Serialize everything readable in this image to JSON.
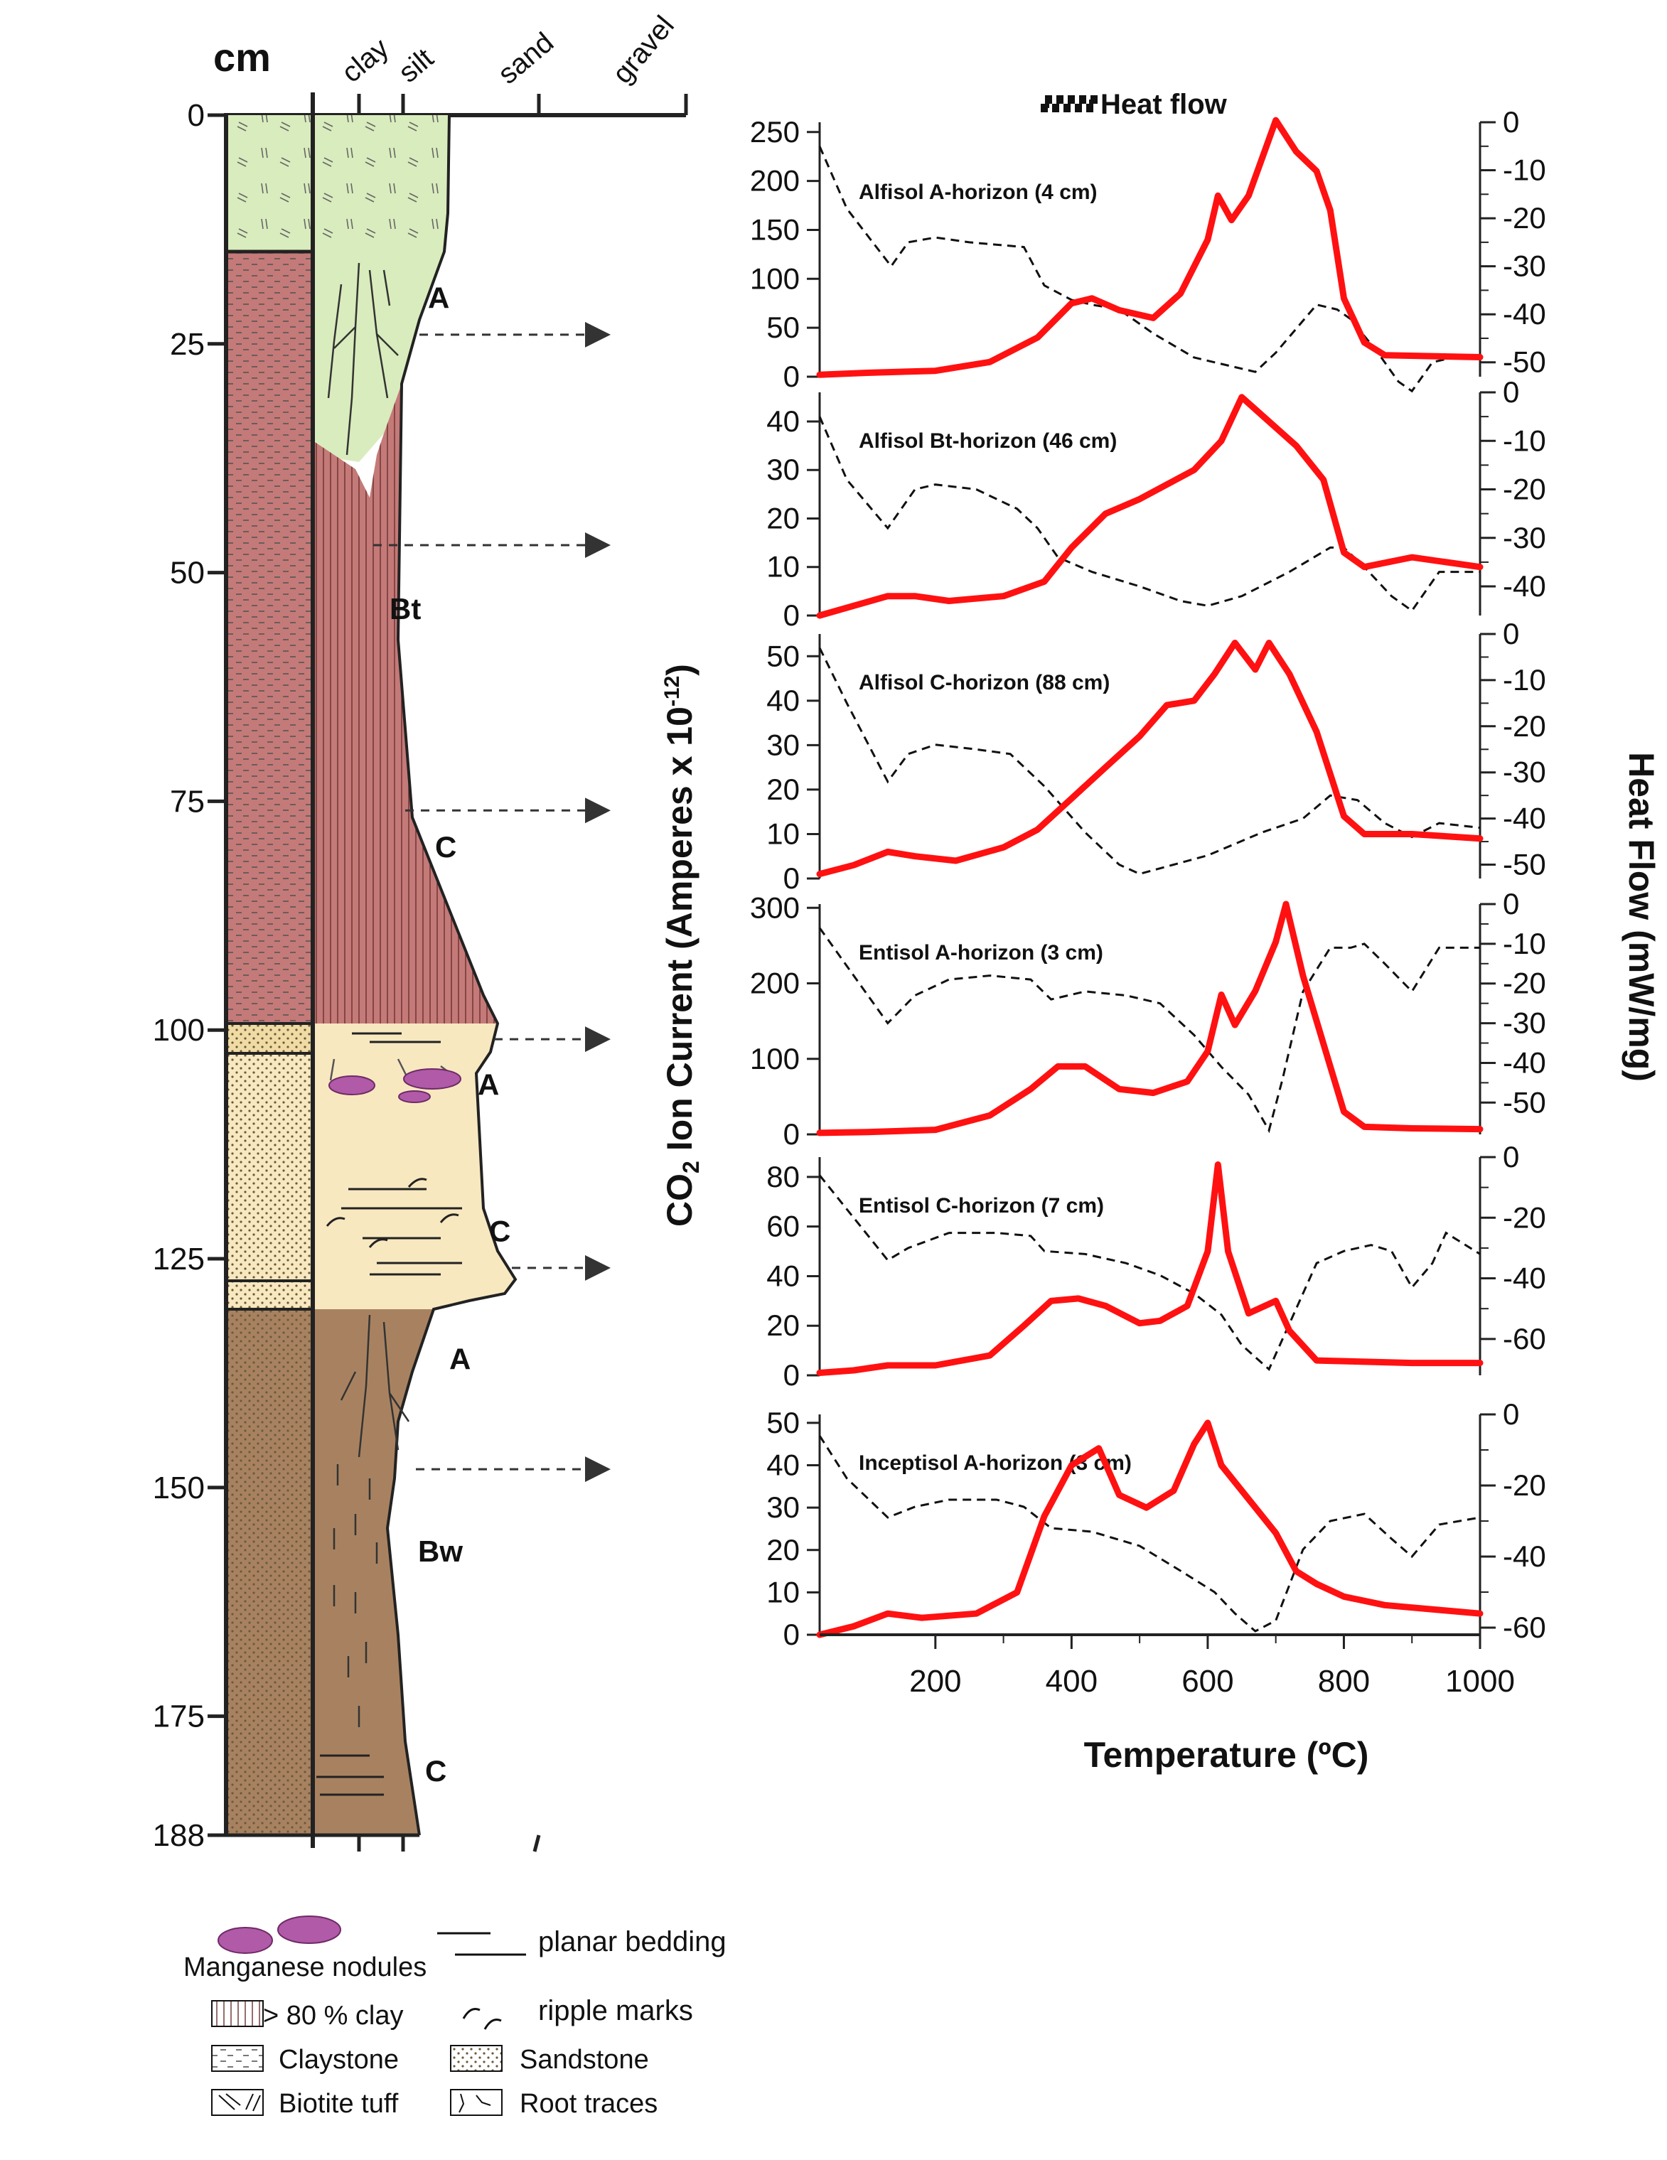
{
  "column": {
    "unit_label": "cm",
    "grain_labels": [
      "clay",
      "silt",
      "sand",
      "gravel"
    ],
    "depth_ticks": [
      0,
      25,
      50,
      75,
      100,
      125,
      150,
      175,
      188
    ],
    "horizons": [
      {
        "label": "A",
        "depth": 20
      },
      {
        "label": "Bt",
        "depth": 54
      },
      {
        "label": "C",
        "depth": 80
      },
      {
        "label": "A",
        "depth": 106
      },
      {
        "label": "C",
        "depth": 122
      },
      {
        "label": "A",
        "depth": 136
      },
      {
        "label": "Bw",
        "depth": 157
      },
      {
        "label": "C",
        "depth": 181
      }
    ],
    "arrow_depths": [
      24,
      47,
      76,
      101,
      126,
      148
    ]
  },
  "colors": {
    "tuff": "#d9ecbd",
    "clay_red": "#c47a78",
    "sand": "#f8e8c0",
    "brown": "#a88260",
    "nodule": "#b05aa8",
    "co2": "#ff1111",
    "heat": "#111111"
  },
  "legend": {
    "heat_flow": "Heat flow",
    "manganese": "Manganese nodules",
    "planar": "planar bedding",
    "ripple": "ripple marks",
    "clay80": "> 80 % clay",
    "claystone": "Claystone",
    "sandstone": "Sandstone",
    "tuff": "Biotite tuff",
    "roots": "Root traces"
  },
  "axes": {
    "left_title_pre": "CO",
    "left_title_sub": "2",
    "left_title_mid": " Ion Current (Amperes x 10",
    "left_title_sup": "-12",
    "left_title_post": ")",
    "right_title": "Heat Flow (mW/mg)",
    "x_title": "Temperature (ºC)",
    "x_ticks": [
      "200",
      "400",
      "600",
      "800",
      "1000"
    ]
  },
  "chart_data": [
    {
      "type": "line",
      "title": "Alfisol A-horizon (4 cm)",
      "x_range": [
        30,
        1000
      ],
      "left_ticks": [
        0,
        50,
        100,
        150,
        200,
        250
      ],
      "left_lim": [
        0,
        260
      ],
      "right_ticks": [
        0,
        -10,
        -20,
        -30,
        -40,
        -50
      ],
      "right_lim": [
        -53,
        0
      ],
      "co2": [
        [
          30,
          2
        ],
        [
          100,
          4
        ],
        [
          200,
          6
        ],
        [
          280,
          15
        ],
        [
          350,
          40
        ],
        [
          400,
          75
        ],
        [
          430,
          80
        ],
        [
          470,
          68
        ],
        [
          520,
          60
        ],
        [
          560,
          85
        ],
        [
          600,
          140
        ],
        [
          615,
          185
        ],
        [
          635,
          160
        ],
        [
          660,
          185
        ],
        [
          700,
          262
        ],
        [
          730,
          230
        ],
        [
          760,
          210
        ],
        [
          780,
          170
        ],
        [
          800,
          80
        ],
        [
          830,
          35
        ],
        [
          860,
          22
        ],
        [
          1000,
          20
        ]
      ],
      "heat": [
        [
          30,
          -5
        ],
        [
          70,
          -18
        ],
        [
          135,
          -30
        ],
        [
          160,
          -25
        ],
        [
          200,
          -24
        ],
        [
          250,
          -25
        ],
        [
          330,
          -26
        ],
        [
          360,
          -34
        ],
        [
          400,
          -37
        ],
        [
          430,
          -38
        ],
        [
          470,
          -39
        ],
        [
          520,
          -44
        ],
        [
          580,
          -49
        ],
        [
          640,
          -51
        ],
        [
          670,
          -52
        ],
        [
          700,
          -48
        ],
        [
          730,
          -43
        ],
        [
          760,
          -38
        ],
        [
          790,
          -39
        ],
        [
          810,
          -41
        ],
        [
          850,
          -48
        ],
        [
          880,
          -54
        ],
        [
          900,
          -56
        ],
        [
          930,
          -50
        ],
        [
          960,
          -49
        ],
        [
          1000,
          -49
        ]
      ]
    },
    {
      "type": "line",
      "title": "Alfisol Bt-horizon (46 cm)",
      "x_range": [
        30,
        1000
      ],
      "left_ticks": [
        0,
        10,
        20,
        30,
        40
      ],
      "left_lim": [
        0,
        46
      ],
      "right_ticks": [
        0,
        -10,
        -20,
        -30,
        -40
      ],
      "right_lim": [
        -46,
        0
      ],
      "co2": [
        [
          30,
          0
        ],
        [
          80,
          2
        ],
        [
          130,
          4
        ],
        [
          170,
          4
        ],
        [
          220,
          3
        ],
        [
          300,
          4
        ],
        [
          360,
          7
        ],
        [
          400,
          14
        ],
        [
          450,
          21
        ],
        [
          500,
          24
        ],
        [
          540,
          27
        ],
        [
          580,
          30
        ],
        [
          620,
          36
        ],
        [
          650,
          45
        ],
        [
          690,
          40
        ],
        [
          730,
          35
        ],
        [
          770,
          28
        ],
        [
          800,
          13
        ],
        [
          830,
          10
        ],
        [
          900,
          12
        ],
        [
          1000,
          10
        ]
      ],
      "heat": [
        [
          30,
          -5
        ],
        [
          70,
          -18
        ],
        [
          130,
          -28
        ],
        [
          170,
          -20
        ],
        [
          200,
          -19
        ],
        [
          260,
          -20
        ],
        [
          320,
          -24
        ],
        [
          350,
          -28
        ],
        [
          380,
          -34
        ],
        [
          430,
          -37
        ],
        [
          500,
          -40
        ],
        [
          560,
          -43
        ],
        [
          600,
          -44
        ],
        [
          650,
          -42
        ],
        [
          720,
          -37
        ],
        [
          780,
          -32
        ],
        [
          800,
          -32
        ],
        [
          830,
          -36
        ],
        [
          870,
          -42
        ],
        [
          900,
          -45
        ],
        [
          940,
          -37
        ],
        [
          1000,
          -37
        ]
      ]
    },
    {
      "type": "line",
      "title": "Alfisol C-horizon (88 cm)",
      "x_range": [
        30,
        1000
      ],
      "left_ticks": [
        0,
        10,
        20,
        30,
        40,
        50
      ],
      "left_lim": [
        0,
        55
      ],
      "right_ticks": [
        0,
        -10,
        -20,
        -30,
        -40,
        -50
      ],
      "right_lim": [
        -53,
        0
      ],
      "co2": [
        [
          30,
          1
        ],
        [
          80,
          3
        ],
        [
          130,
          6
        ],
        [
          170,
          5
        ],
        [
          230,
          4
        ],
        [
          300,
          7
        ],
        [
          350,
          11
        ],
        [
          400,
          18
        ],
        [
          450,
          25
        ],
        [
          500,
          32
        ],
        [
          540,
          39
        ],
        [
          580,
          40
        ],
        [
          610,
          46
        ],
        [
          640,
          53
        ],
        [
          670,
          47
        ],
        [
          690,
          53
        ],
        [
          720,
          46
        ],
        [
          760,
          33
        ],
        [
          800,
          14
        ],
        [
          830,
          10
        ],
        [
          900,
          10
        ],
        [
          1000,
          9
        ]
      ],
      "heat": [
        [
          30,
          -3
        ],
        [
          70,
          -15
        ],
        [
          130,
          -32
        ],
        [
          160,
          -26
        ],
        [
          200,
          -24
        ],
        [
          260,
          -25
        ],
        [
          310,
          -26
        ],
        [
          360,
          -33
        ],
        [
          420,
          -43
        ],
        [
          470,
          -50
        ],
        [
          500,
          -52
        ],
        [
          550,
          -50
        ],
        [
          600,
          -48
        ],
        [
          680,
          -43
        ],
        [
          740,
          -40
        ],
        [
          780,
          -35
        ],
        [
          820,
          -36
        ],
        [
          860,
          -41
        ],
        [
          900,
          -44
        ],
        [
          940,
          -41
        ],
        [
          1000,
          -42
        ]
      ]
    },
    {
      "type": "line",
      "title": "Entisol A-horizon (3 cm)",
      "x_range": [
        30,
        1000
      ],
      "left_ticks": [
        0,
        100,
        200,
        300
      ],
      "left_lim": [
        0,
        305
      ],
      "right_ticks": [
        0,
        -10,
        -20,
        -30,
        -40,
        -50
      ],
      "right_lim": [
        -58,
        0
      ],
      "co2": [
        [
          30,
          2
        ],
        [
          100,
          3
        ],
        [
          200,
          6
        ],
        [
          280,
          25
        ],
        [
          340,
          60
        ],
        [
          380,
          90
        ],
        [
          420,
          90
        ],
        [
          470,
          60
        ],
        [
          520,
          55
        ],
        [
          570,
          70
        ],
        [
          600,
          110
        ],
        [
          620,
          185
        ],
        [
          640,
          145
        ],
        [
          670,
          190
        ],
        [
          700,
          255
        ],
        [
          715,
          305
        ],
        [
          740,
          210
        ],
        [
          770,
          120
        ],
        [
          800,
          30
        ],
        [
          830,
          10
        ],
        [
          900,
          8
        ],
        [
          1000,
          7
        ]
      ],
      "heat": [
        [
          30,
          -6
        ],
        [
          80,
          -18
        ],
        [
          130,
          -30
        ],
        [
          170,
          -23
        ],
        [
          220,
          -19
        ],
        [
          280,
          -18
        ],
        [
          340,
          -19
        ],
        [
          370,
          -24
        ],
        [
          420,
          -22
        ],
        [
          480,
          -23
        ],
        [
          530,
          -25
        ],
        [
          580,
          -33
        ],
        [
          620,
          -41
        ],
        [
          660,
          -48
        ],
        [
          690,
          -57
        ],
        [
          710,
          -44
        ],
        [
          740,
          -22
        ],
        [
          780,
          -11
        ],
        [
          810,
          -11
        ],
        [
          830,
          -10
        ],
        [
          860,
          -15
        ],
        [
          900,
          -22
        ],
        [
          940,
          -11
        ],
        [
          1000,
          -11
        ]
      ]
    },
    {
      "type": "line",
      "title": "Entisol C-horizon (7 cm)",
      "x_range": [
        30,
        1000
      ],
      "left_ticks": [
        0,
        20,
        40,
        60,
        80
      ],
      "left_lim": [
        0,
        88
      ],
      "right_ticks": [
        0,
        -20,
        -40,
        -60
      ],
      "right_lim": [
        -72,
        0
      ],
      "co2": [
        [
          30,
          1
        ],
        [
          80,
          2
        ],
        [
          130,
          4
        ],
        [
          200,
          4
        ],
        [
          280,
          8
        ],
        [
          330,
          20
        ],
        [
          370,
          30
        ],
        [
          410,
          31
        ],
        [
          450,
          28
        ],
        [
          500,
          21
        ],
        [
          530,
          22
        ],
        [
          570,
          28
        ],
        [
          600,
          50
        ],
        [
          615,
          85
        ],
        [
          630,
          50
        ],
        [
          660,
          25
        ],
        [
          700,
          30
        ],
        [
          720,
          18
        ],
        [
          760,
          6
        ],
        [
          900,
          5
        ],
        [
          1000,
          5
        ]
      ],
      "heat": [
        [
          30,
          -6
        ],
        [
          80,
          -20
        ],
        [
          130,
          -34
        ],
        [
          160,
          -30
        ],
        [
          220,
          -25
        ],
        [
          290,
          -25
        ],
        [
          340,
          -26
        ],
        [
          360,
          -31
        ],
        [
          420,
          -32
        ],
        [
          480,
          -35
        ],
        [
          530,
          -39
        ],
        [
          580,
          -45
        ],
        [
          620,
          -52
        ],
        [
          650,
          -62
        ],
        [
          690,
          -70
        ],
        [
          720,
          -55
        ],
        [
          760,
          -35
        ],
        [
          800,
          -31
        ],
        [
          840,
          -29
        ],
        [
          870,
          -31
        ],
        [
          900,
          -43
        ],
        [
          930,
          -35
        ],
        [
          950,
          -25
        ],
        [
          1000,
          -32
        ]
      ]
    },
    {
      "type": "line",
      "title": "Inceptisol A-horizon (3 cm)",
      "x_range": [
        30,
        1000
      ],
      "left_ticks": [
        0,
        10,
        20,
        30,
        40,
        50
      ],
      "left_lim": [
        0,
        52
      ],
      "right_ticks": [
        0,
        -20,
        -40,
        -60
      ],
      "right_lim": [
        -62,
        0
      ],
      "co2": [
        [
          30,
          0
        ],
        [
          80,
          2
        ],
        [
          130,
          5
        ],
        [
          180,
          4
        ],
        [
          260,
          5
        ],
        [
          320,
          10
        ],
        [
          360,
          28
        ],
        [
          400,
          40
        ],
        [
          440,
          44
        ],
        [
          470,
          33
        ],
        [
          510,
          30
        ],
        [
          550,
          34
        ],
        [
          580,
          45
        ],
        [
          600,
          50
        ],
        [
          620,
          40
        ],
        [
          660,
          32
        ],
        [
          700,
          24
        ],
        [
          730,
          15
        ],
        [
          760,
          12
        ],
        [
          800,
          9
        ],
        [
          860,
          7
        ],
        [
          1000,
          5
        ]
      ],
      "heat": [
        [
          30,
          -6
        ],
        [
          70,
          -18
        ],
        [
          130,
          -29
        ],
        [
          170,
          -26
        ],
        [
          220,
          -24
        ],
        [
          290,
          -24
        ],
        [
          330,
          -26
        ],
        [
          370,
          -32
        ],
        [
          430,
          -33
        ],
        [
          500,
          -37
        ],
        [
          560,
          -44
        ],
        [
          610,
          -50
        ],
        [
          640,
          -56
        ],
        [
          670,
          -61
        ],
        [
          700,
          -58
        ],
        [
          740,
          -38
        ],
        [
          780,
          -30
        ],
        [
          830,
          -28
        ],
        [
          870,
          -35
        ],
        [
          900,
          -40
        ],
        [
          940,
          -31
        ],
        [
          1000,
          -29
        ]
      ]
    }
  ]
}
